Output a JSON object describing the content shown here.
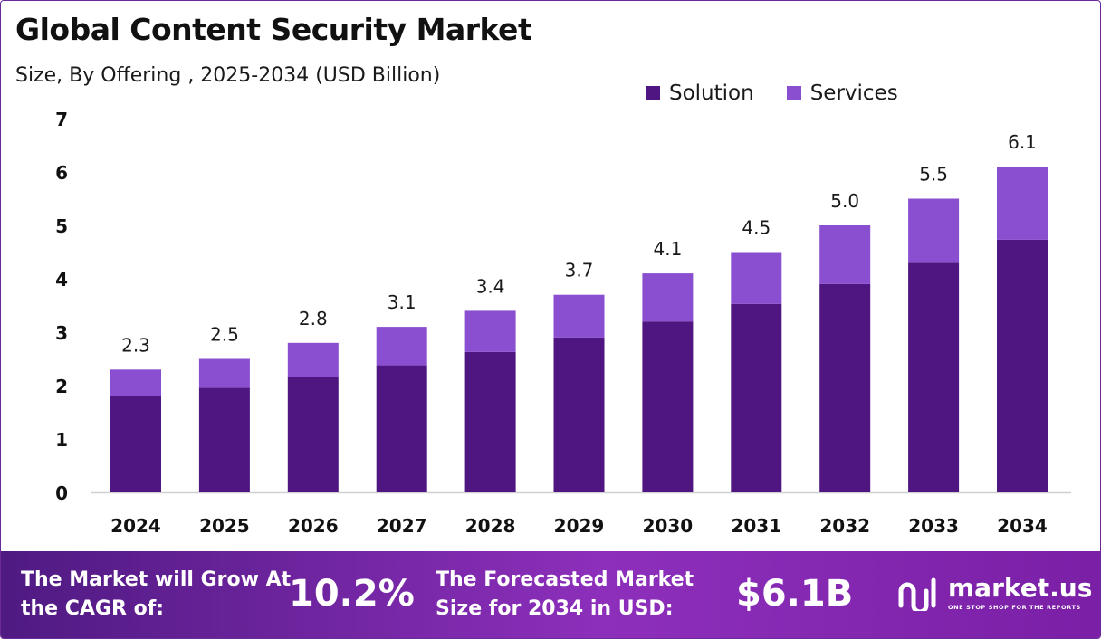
{
  "header": {
    "title": "Global Content Security Market",
    "subtitle": "Size, By Offering , 2025-2034 (USD Billion)"
  },
  "chart_data": {
    "type": "bar",
    "stacked": true,
    "categories": [
      "2024",
      "2025",
      "2026",
      "2027",
      "2028",
      "2029",
      "2030",
      "2031",
      "2032",
      "2033",
      "2034"
    ],
    "series": [
      {
        "name": "Solution",
        "color": "#4f1580",
        "values": [
          1.8,
          1.96,
          2.16,
          2.38,
          2.63,
          2.9,
          3.2,
          3.53,
          3.9,
          4.3,
          4.73
        ]
      },
      {
        "name": "Services",
        "color": "#8a4fd0",
        "values": [
          0.5,
          0.54,
          0.64,
          0.72,
          0.77,
          0.8,
          0.9,
          0.97,
          1.1,
          1.2,
          1.37
        ]
      }
    ],
    "totals": [
      2.3,
      2.5,
      2.8,
      3.1,
      3.4,
      3.7,
      4.1,
      4.5,
      5.0,
      5.5,
      6.1
    ],
    "total_labels": [
      "2.3",
      "2.5",
      "2.8",
      "3.1",
      "3.4",
      "3.7",
      "4.1",
      "4.5",
      "5.0",
      "5.5",
      "6.1"
    ],
    "ylim": [
      0,
      7
    ],
    "yticks": [
      0,
      1,
      2,
      3,
      4,
      5,
      6,
      7
    ],
    "grid": false,
    "legend_position": "top-right"
  },
  "banner": {
    "cagr_text": "The Market will Grow At the CAGR of:",
    "cagr_value": "10.2%",
    "forecast_text": "The Forecasted Market Size for 2034 in USD:",
    "forecast_value": "$6.1B",
    "logo_name": "market.us",
    "logo_tagline": "ONE STOP SHOP FOR THE REPORTS"
  }
}
